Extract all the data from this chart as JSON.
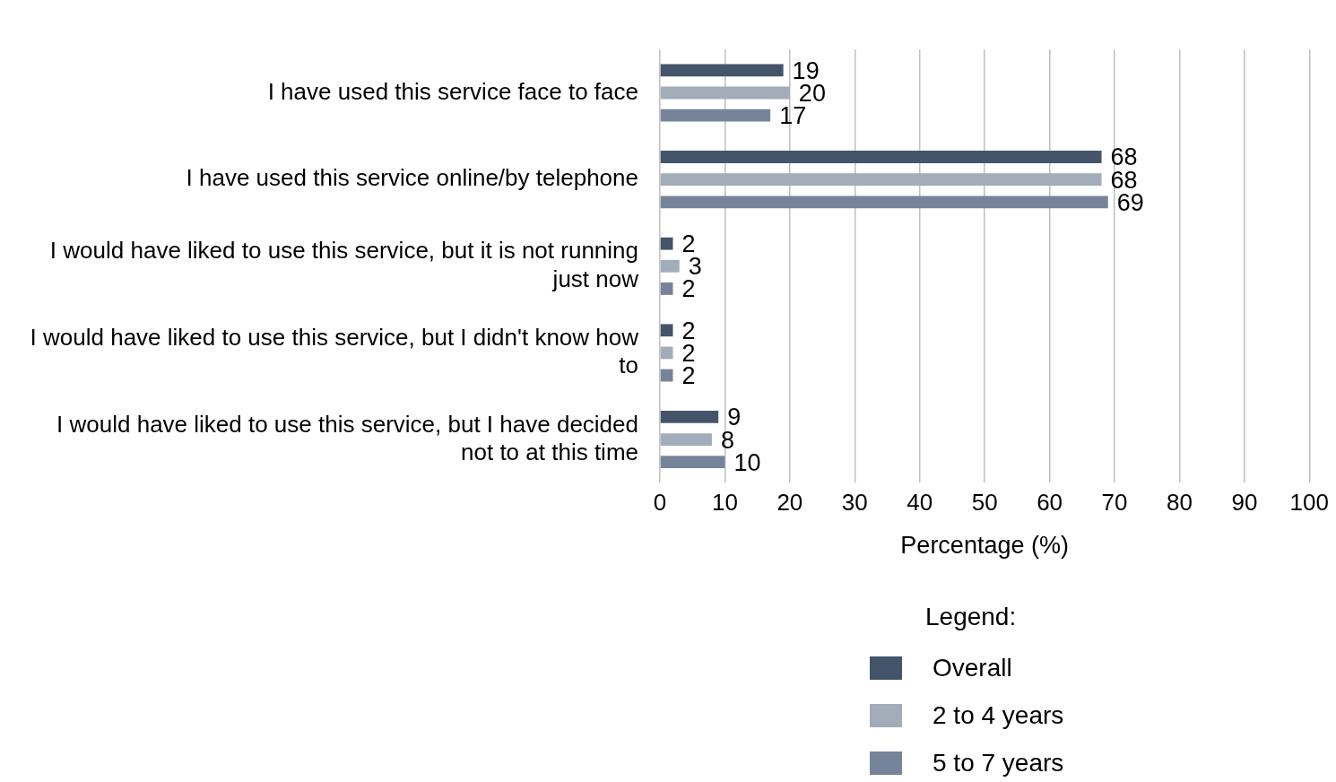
{
  "chart_data": {
    "type": "bar",
    "orientation": "horizontal",
    "xlabel": "Percentage (%)",
    "legend_title": "Legend:",
    "legend": "bottom right",
    "grid": "x",
    "data_labels": true,
    "categories": [
      "I have used this service face to face",
      "I have used this service online/by telephone",
      "I would have liked to use this service, but it is not running just now",
      "I would have liked to use this service, but I didn't know how to",
      "I would have liked to use this service, but I have decided not to at this time"
    ],
    "series": [
      {
        "name": "Overall",
        "color": "#44546a",
        "values": [
          19,
          68,
          2,
          2,
          9
        ]
      },
      {
        "name": "2 to 4 years",
        "color": "#a3acb9",
        "values": [
          20,
          68,
          3,
          2,
          8
        ]
      },
      {
        "name": "5 to 7 years",
        "color": "#76849a",
        "values": [
          17,
          69,
          2,
          2,
          10
        ]
      }
    ],
    "xlim": [
      0,
      100
    ],
    "xticks": [
      0,
      10,
      20,
      30,
      40,
      50,
      60,
      70,
      80,
      90,
      100
    ]
  }
}
